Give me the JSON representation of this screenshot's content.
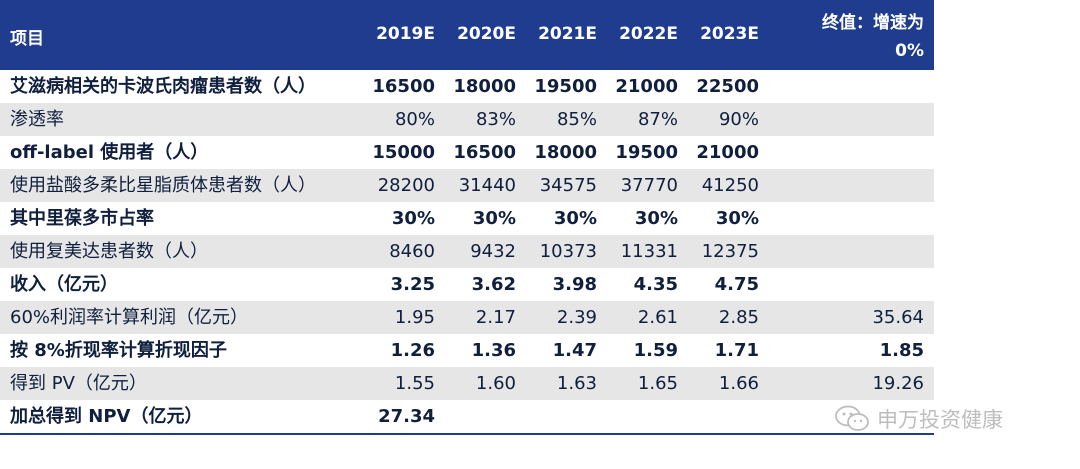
{
  "header": {
    "item": "项目",
    "years": [
      "2019E",
      "2020E",
      "2021E",
      "2022E",
      "2023E"
    ],
    "terminal_line1": "终值：增速为",
    "terminal_line2": "0%"
  },
  "rows": [
    {
      "label": "艾滋病相关的卡波氏肉瘤患者数（人）",
      "values": [
        "16500",
        "18000",
        "19500",
        "21000",
        "22500",
        ""
      ]
    },
    {
      "label": "渗透率",
      "values": [
        "80%",
        "83%",
        "85%",
        "87%",
        "90%",
        ""
      ]
    },
    {
      "label": "off-label 使用者（人）",
      "values": [
        "15000",
        "16500",
        "18000",
        "19500",
        "21000",
        ""
      ]
    },
    {
      "label": "使用盐酸多柔比星脂质体患者数（人）",
      "values": [
        "28200",
        "31440",
        "34575",
        "37770",
        "41250",
        ""
      ]
    },
    {
      "label": "其中里葆多市占率",
      "values": [
        "30%",
        "30%",
        "30%",
        "30%",
        "30%",
        ""
      ]
    },
    {
      "label": "使用复美达患者数（人）",
      "values": [
        "8460",
        "9432",
        "10373",
        "11331",
        "12375",
        ""
      ]
    },
    {
      "label": "收入（亿元）",
      "values": [
        "3.25",
        "3.62",
        "3.98",
        "4.35",
        "4.75",
        ""
      ]
    },
    {
      "label": "60%利润率计算利润（亿元）",
      "values": [
        "1.95",
        "2.17",
        "2.39",
        "2.61",
        "2.85",
        "35.64"
      ]
    },
    {
      "label": "按 8%折现率计算折现因子",
      "values": [
        "1.26",
        "1.36",
        "1.47",
        "1.59",
        "1.71",
        "1.85"
      ]
    },
    {
      "label": "得到 PV（亿元）",
      "values": [
        "1.55",
        "1.60",
        "1.63",
        "1.65",
        "1.66",
        "19.26"
      ]
    },
    {
      "label": "加总得到 NPV（亿元）",
      "values": [
        "27.34",
        "",
        "",
        "",
        "",
        ""
      ]
    }
  ],
  "watermark": "申万投资健康"
}
